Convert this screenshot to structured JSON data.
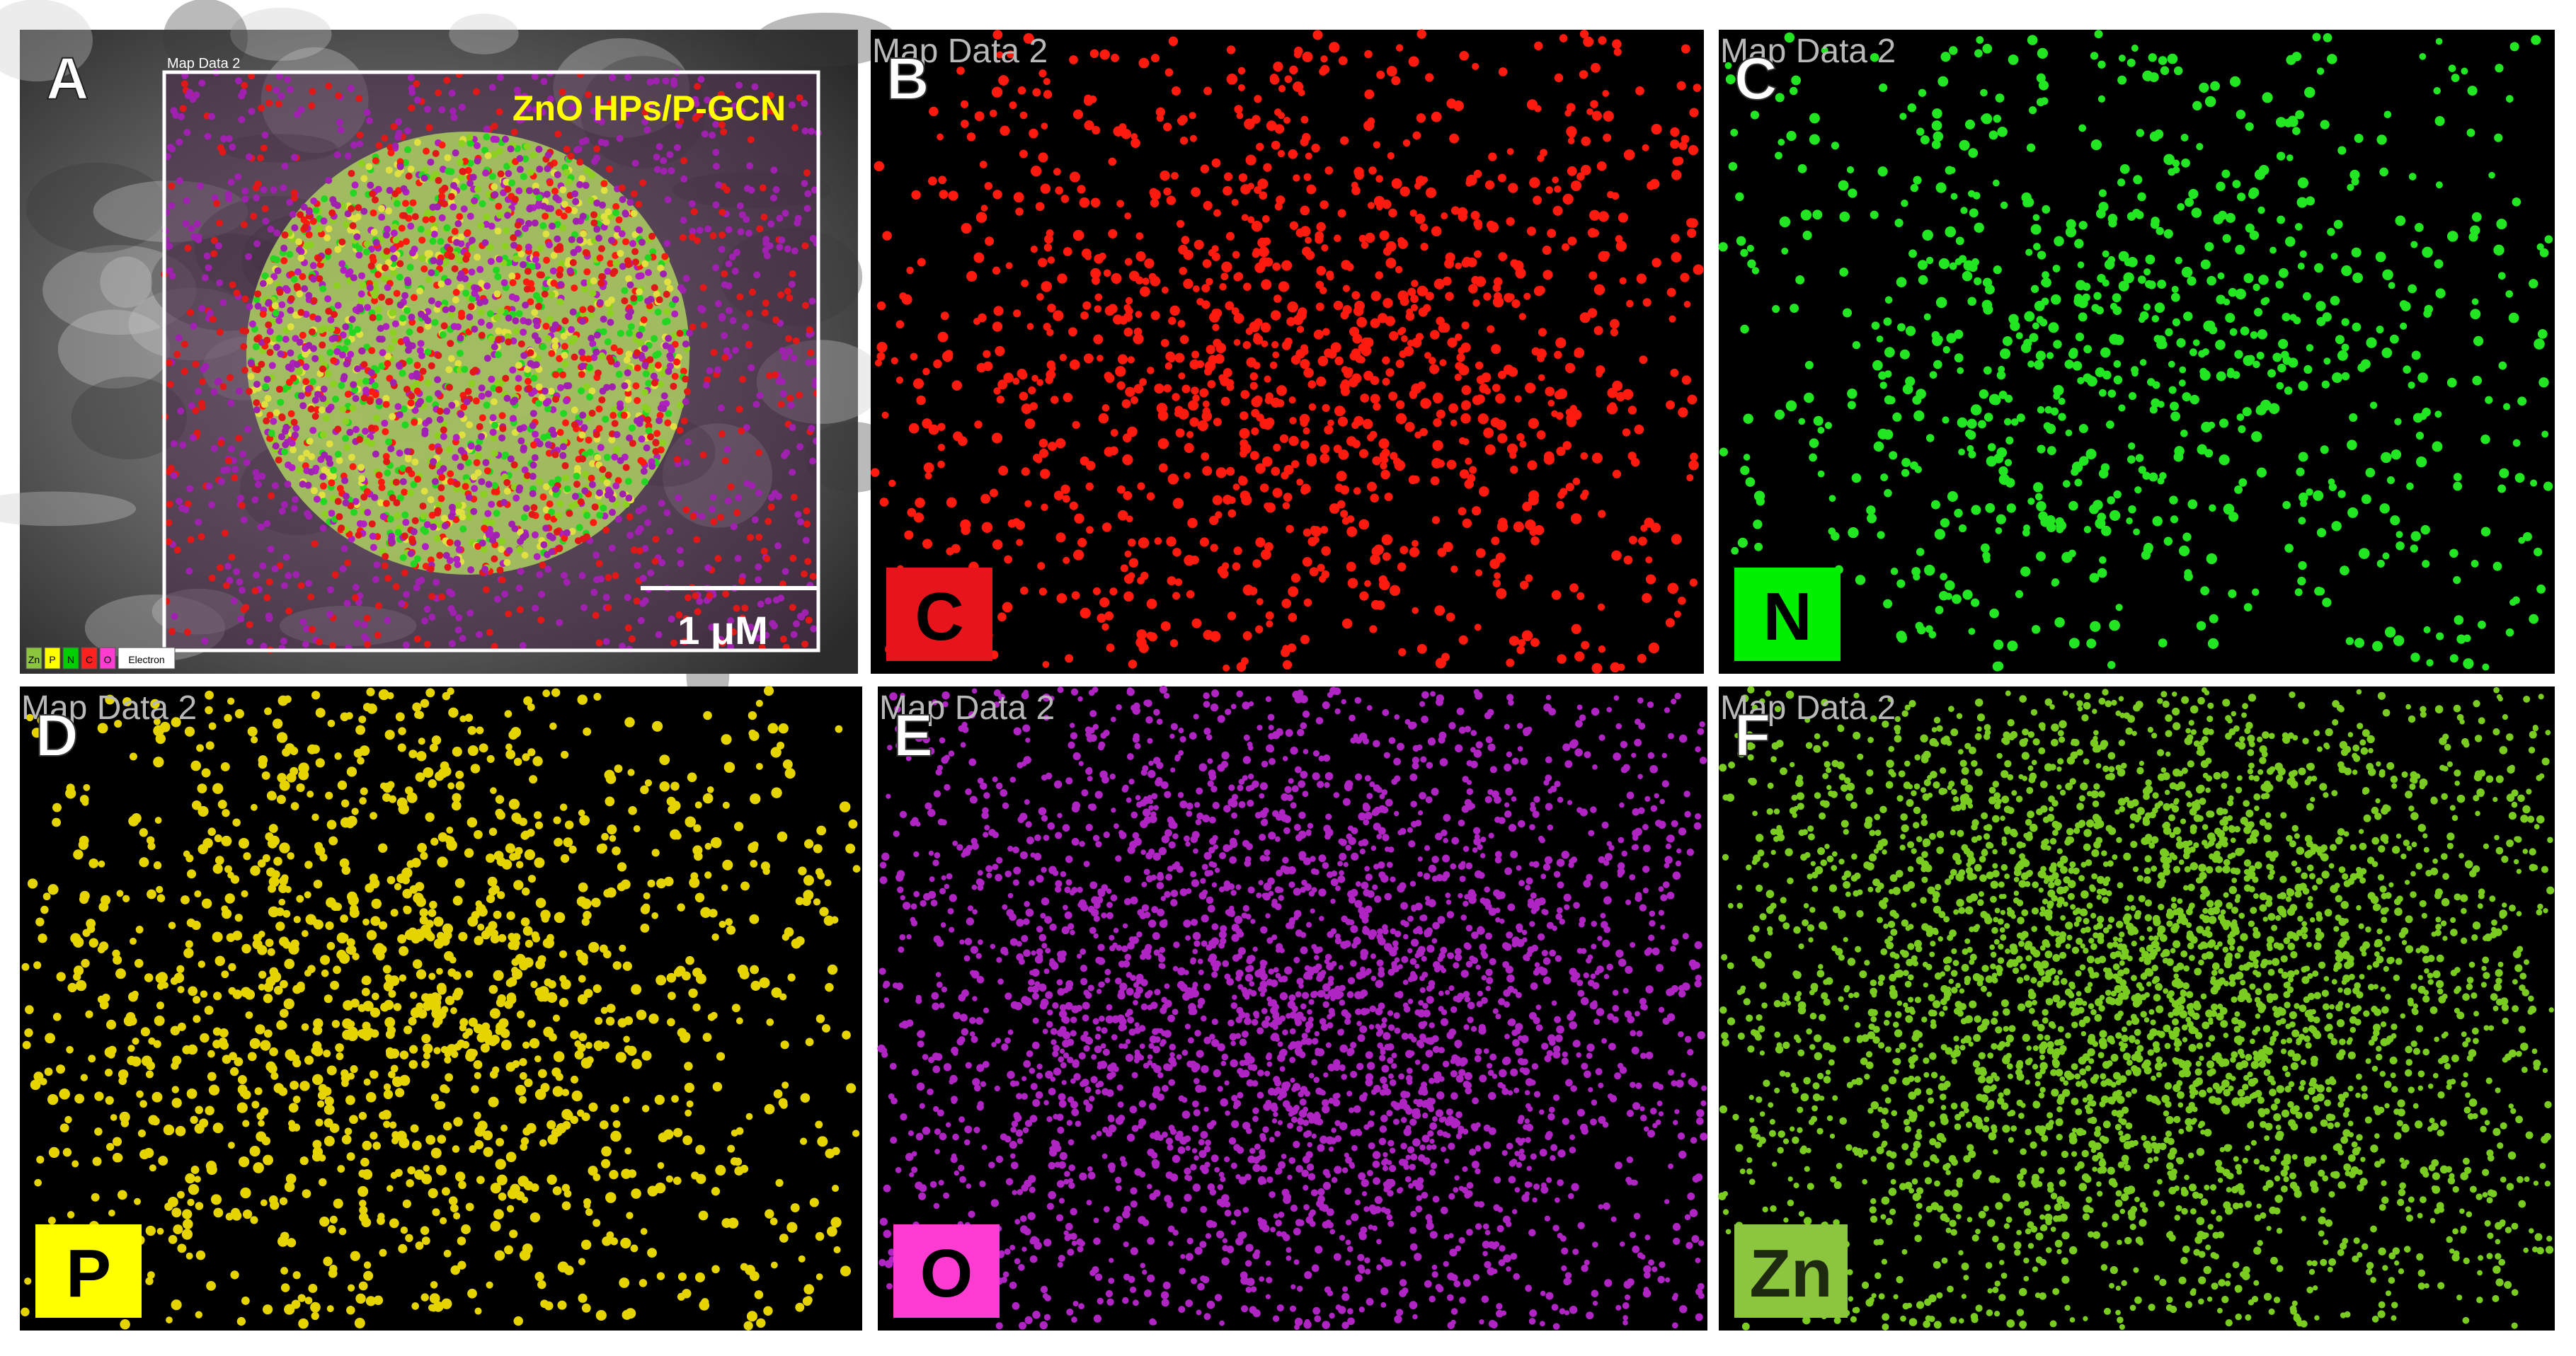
{
  "panels": [
    {
      "letter": "A",
      "header": "Map Data 2",
      "title": "ZnO HPs/P-GCN",
      "scale_bar": "1 μM",
      "legend": [
        "Zn",
        "P",
        "N",
        "C",
        "O",
        "Electron"
      ]
    },
    {
      "letter": "B",
      "header": "Map Data 2",
      "element": "C"
    },
    {
      "letter": "C",
      "header": "Map Data 2",
      "element": "N"
    },
    {
      "letter": "D",
      "header": "Map Data 2",
      "element": "P"
    },
    {
      "letter": "E",
      "header": "Map Data 2",
      "element": "O"
    },
    {
      "letter": "F",
      "header": "Map Data 2",
      "element": "Zn"
    }
  ]
}
